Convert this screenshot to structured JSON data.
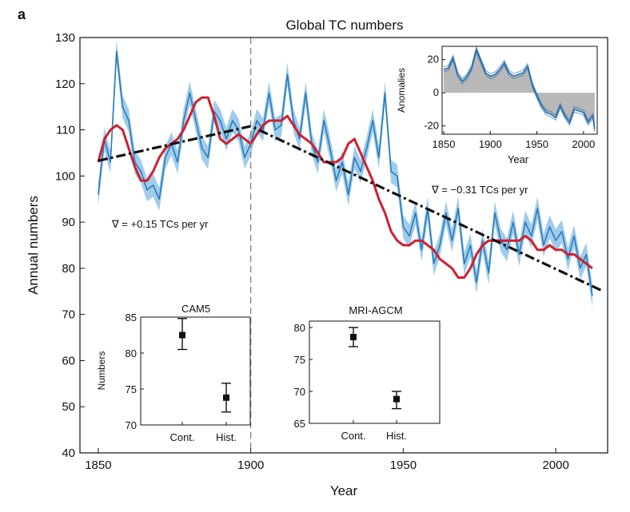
{
  "panel_label": "a",
  "chart_data": [
    {
      "id": "main",
      "type": "line",
      "title": "Global TC numbers",
      "xlabel": "Year",
      "ylabel": "Annual numbers",
      "xlim": [
        1844,
        2017
      ],
      "ylim": [
        40,
        130
      ],
      "xticks": [
        1850,
        1900,
        1950,
        2000
      ],
      "yticks": [
        40,
        50,
        60,
        70,
        80,
        90,
        100,
        110,
        120,
        130
      ],
      "grid": false,
      "vertical_reference_line": {
        "x": 1900,
        "style": "dashed"
      },
      "series": [
        {
          "color": "#2a7bbd",
          "band_color": "#8fc3e6",
          "x": [
            1850,
            1852,
            1854,
            1856,
            1858,
            1860,
            1862,
            1864,
            1866,
            1868,
            1870,
            1872,
            1874,
            1876,
            1878,
            1880,
            1882,
            1884,
            1886,
            1888,
            1890,
            1892,
            1894,
            1896,
            1898,
            1900,
            1902,
            1904,
            1906,
            1908,
            1910,
            1912,
            1914,
            1916,
            1918,
            1920,
            1922,
            1924,
            1926,
            1928,
            1930,
            1932,
            1934,
            1936,
            1938,
            1940,
            1942,
            1944,
            1946,
            1948,
            1950,
            1952,
            1954,
            1956,
            1958,
            1960,
            1962,
            1964,
            1966,
            1968,
            1970,
            1972,
            1974,
            1976,
            1978,
            1980,
            1982,
            1984,
            1986,
            1988,
            1990,
            1992,
            1994,
            1996,
            1998,
            2000,
            2002,
            2004,
            2006,
            2008,
            2010,
            2012
          ],
          "values": [
            96,
            108,
            103,
            127,
            115,
            112,
            103,
            101,
            97,
            98,
            95,
            104,
            107,
            103,
            112,
            118,
            112,
            106,
            104,
            114,
            112,
            108,
            112,
            110,
            104,
            107,
            112,
            110,
            118,
            110,
            111,
            122,
            112,
            108,
            118,
            107,
            103,
            112,
            106,
            99,
            103,
            96,
            104,
            101,
            106,
            112,
            104,
            118,
            101,
            100,
            89,
            87,
            92,
            84,
            93,
            81,
            85,
            92,
            86,
            93,
            81,
            85,
            77,
            86,
            79,
            92,
            86,
            84,
            90,
            83,
            90,
            87,
            93,
            85,
            89,
            86,
            88,
            82,
            87,
            80,
            83,
            74
          ]
        },
        {
          "color": "#d0202e",
          "x": [
            1850,
            1852,
            1854,
            1856,
            1858,
            1860,
            1862,
            1864,
            1866,
            1868,
            1870,
            1872,
            1874,
            1876,
            1878,
            1880,
            1882,
            1884,
            1886,
            1888,
            1890,
            1892,
            1894,
            1896,
            1898,
            1900,
            1902,
            1904,
            1906,
            1908,
            1910,
            1912,
            1914,
            1916,
            1918,
            1920,
            1922,
            1924,
            1926,
            1928,
            1930,
            1932,
            1934,
            1936,
            1938,
            1940,
            1942,
            1944,
            1946,
            1948,
            1950,
            1952,
            1954,
            1956,
            1958,
            1960,
            1962,
            1964,
            1966,
            1968,
            1970,
            1972,
            1974,
            1976,
            1978,
            1980,
            1982,
            1984,
            1986,
            1988,
            1990,
            1992,
            1994,
            1996,
            1998,
            2000,
            2002,
            2004,
            2006,
            2008,
            2010,
            2012
          ],
          "values": [
            103,
            108,
            110,
            111,
            110,
            106,
            102,
            99,
            99,
            101,
            104,
            106,
            107,
            108,
            110,
            113,
            116,
            117,
            117,
            113,
            108,
            107,
            108,
            109,
            108,
            107,
            109,
            111,
            112,
            112,
            112,
            113,
            111,
            109,
            108,
            107,
            105,
            103,
            103,
            103,
            104,
            107,
            108,
            105,
            102,
            99,
            95,
            92,
            88,
            86,
            85,
            85,
            86,
            86,
            85,
            84,
            82,
            81,
            80,
            78,
            78,
            80,
            83,
            85,
            86,
            86,
            86,
            86,
            86,
            86,
            87,
            86,
            84,
            84,
            85,
            84,
            84,
            83,
            83,
            82,
            81,
            80
          ]
        },
        {
          "color": "#111111",
          "style": "dash-dot",
          "x": [
            1850,
            1900,
            2015
          ],
          "values": [
            103.3,
            110.8,
            75.2
          ]
        }
      ],
      "annotations": [
        {
          "text": "∇ = +0.15 TCs per yr"
        },
        {
          "text": "∇ = −0.31 TCs per yr"
        }
      ]
    },
    {
      "id": "inset_anomalies",
      "type": "line",
      "xlabel": "Year",
      "ylabel": "Anomalies",
      "xlim": [
        1850,
        2013
      ],
      "ylim": [
        -25,
        28
      ],
      "xticks": [
        1850,
        1900,
        1950,
        2000
      ],
      "yticks": [
        -20,
        0,
        20
      ],
      "series": [
        {
          "color": "#2a6fb0",
          "fill": "#b8b8b8",
          "x": [
            1850,
            1855,
            1860,
            1865,
            1870,
            1875,
            1880,
            1885,
            1890,
            1895,
            1900,
            1905,
            1910,
            1915,
            1920,
            1925,
            1930,
            1935,
            1940,
            1945,
            1950,
            1955,
            1960,
            1965,
            1970,
            1975,
            1980,
            1985,
            1990,
            1995,
            2000,
            2005,
            2010,
            2012
          ],
          "values": [
            14,
            15,
            21,
            11,
            7,
            10,
            15,
            26,
            19,
            12,
            10,
            11,
            14,
            18,
            12,
            10,
            11,
            12,
            16,
            5,
            -2,
            -8,
            -12,
            -13,
            -15,
            -8,
            -14,
            -18,
            -10,
            -11,
            -12,
            -18,
            -14,
            -22
          ]
        }
      ]
    },
    {
      "id": "inset_cam5",
      "type": "scatter",
      "title": "CAM5",
      "ylabel": "Numbers",
      "categories": [
        "Cont.",
        "Hist."
      ],
      "values": [
        82.5,
        73.8
      ],
      "error": [
        [
          80.5,
          84.8
        ],
        [
          71.8,
          75.8
        ]
      ],
      "ylim": [
        70,
        85
      ],
      "yticks": [
        70,
        75,
        80,
        85
      ]
    },
    {
      "id": "inset_mri",
      "type": "scatter",
      "title": "MRI-AGCM",
      "categories": [
        "Cont.",
        "Hist."
      ],
      "values": [
        78.5,
        68.8
      ],
      "error": [
        [
          77.0,
          80.0
        ],
        [
          67.3,
          70.0
        ]
      ],
      "ylim": [
        65,
        81
      ],
      "yticks": [
        65,
        70,
        75,
        80
      ]
    }
  ]
}
